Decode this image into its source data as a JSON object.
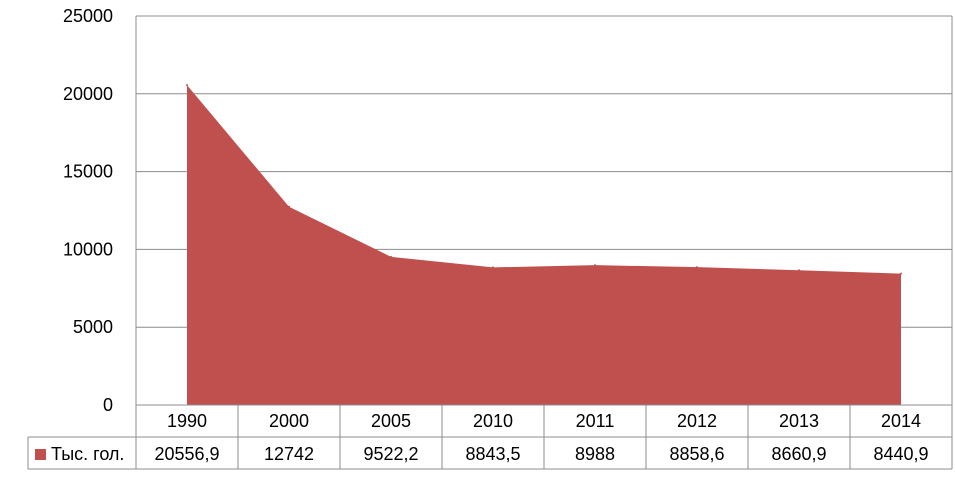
{
  "chart_data": {
    "type": "area",
    "title": "",
    "xlabel": "",
    "ylabel": "",
    "categories": [
      "1990",
      "2000",
      "2005",
      "2010",
      "2011",
      "2012",
      "2013",
      "2014"
    ],
    "series": [
      {
        "name": "Тыс. гол.",
        "values": [
          20556.9,
          12742,
          9522.2,
          8843.5,
          8988,
          8858.6,
          8660.9,
          8440.9
        ],
        "labels": [
          "20556,9",
          "12742",
          "9522,2",
          "8843,5",
          "8988",
          "8858,6",
          "8660,9",
          "8440,9"
        ],
        "color": "#C0504D"
      }
    ],
    "ylim": [
      0,
      25000
    ],
    "yticks": [
      "0",
      "5000",
      "10000",
      "15000",
      "20000",
      "25000"
    ],
    "grid": true,
    "legend": "data-table-left"
  }
}
